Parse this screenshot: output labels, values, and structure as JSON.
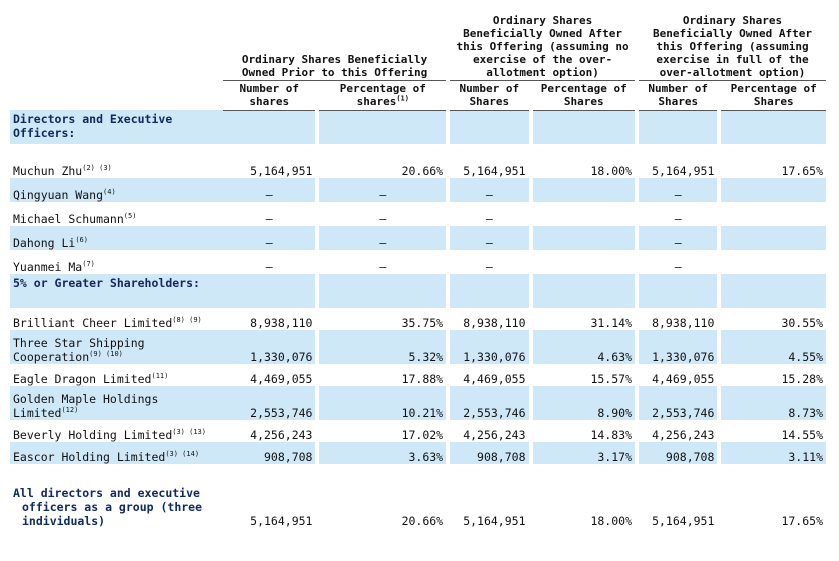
{
  "header": {
    "group_prior": "Ordinary Shares Beneficially Owned Prior to this Offering",
    "group_no_exercise": "Ordinary Shares Beneficially Owned After this Offering (assuming no exercise of the over-allotment option)",
    "group_full_exercise": "Ordinary Shares Beneficially Owned After this Offering (assuming exercise in full of the over-allotment option)",
    "col_number_prior": "Number of shares",
    "col_pct_prior": "Percentage of shares",
    "col_pct_prior_sup": "(1)",
    "col_number_after1": "Number of Shares",
    "col_pct_after1": "Percentage of Shares",
    "col_number_after2": "Number of Shares",
    "col_pct_after2": "Percentage of Shares"
  },
  "sections": [
    {
      "title": "Directors and Executive Officers:",
      "rows": [
        {
          "name": "Muchun Zhu",
          "sup": "(2) (3)",
          "n1": "5,164,951",
          "p1": "20.66%",
          "n2": "5,164,951",
          "p2": "18.00%",
          "n3": "5,164,951",
          "p3": "17.65%"
        },
        {
          "name": "Qingyuan Wang",
          "sup": "(4)",
          "n1": "—",
          "p1": "—",
          "n2": "—",
          "p2": "",
          "n3": "—",
          "p3": ""
        },
        {
          "name": "Michael Schumann",
          "sup": "(5)",
          "n1": "—",
          "p1": "—",
          "n2": "—",
          "p2": "",
          "n3": "—",
          "p3": ""
        },
        {
          "name": "Dahong Li",
          "sup": "(6)",
          "n1": "—",
          "p1": "—",
          "n2": "—",
          "p2": "",
          "n3": "—",
          "p3": ""
        },
        {
          "name": "Yuanmei Ma",
          "sup": "(7)",
          "n1": "—",
          "p1": "—",
          "n2": "—",
          "p2": "",
          "n3": "—",
          "p3": ""
        }
      ]
    },
    {
      "title": "5% or Greater Shareholders:",
      "rows": [
        {
          "name": "Brilliant Cheer Limited",
          "sup": "(8) (9)",
          "n1": "8,938,110",
          "p1": "35.75%",
          "n2": "8,938,110",
          "p2": "31.14%",
          "n3": "8,938,110",
          "p3": "30.55%"
        },
        {
          "name": "Three Star Shipping Cooperation",
          "sup": "(9) (10)",
          "n1": "1,330,076",
          "p1": "5.32%",
          "n2": "1,330,076",
          "p2": "4.63%",
          "n3": "1,330,076",
          "p3": "4.55%"
        },
        {
          "name": "Eagle Dragon Limited",
          "sup": "(11)",
          "n1": "4,469,055",
          "p1": "17.88%",
          "n2": "4,469,055",
          "p2": "15.57%",
          "n3": "4,469,055",
          "p3": "15.28%"
        },
        {
          "name": "Golden Maple Holdings Limited",
          "sup": "(12)",
          "n1": "2,553,746",
          "p1": "10.21%",
          "n2": "2,553,746",
          "p2": "8.90%",
          "n3": "2,553,746",
          "p3": "8.73%"
        },
        {
          "name": "Beverly Holding Limited",
          "sup": "(3) (13)",
          "n1": "4,256,243",
          "p1": "17.02%",
          "n2": "4,256,243",
          "p2": "14.83%",
          "n3": "4,256,243",
          "p3": "14.55%"
        },
        {
          "name": "Eascor Holding Limited",
          "sup": "(3) (14)",
          "n1": "908,708",
          "p1": "3.63%",
          "n2": "908,708",
          "p2": "3.17%",
          "n3": "908,708",
          "p3": "3.11%"
        }
      ]
    }
  ],
  "total": {
    "name": "All directors and executive officers as a group (three individuals)",
    "n1": "5,164,951",
    "p1": "20.66%",
    "n2": "5,164,951",
    "p2": "18.00%",
    "n3": "5,164,951",
    "p3": "17.65%"
  }
}
